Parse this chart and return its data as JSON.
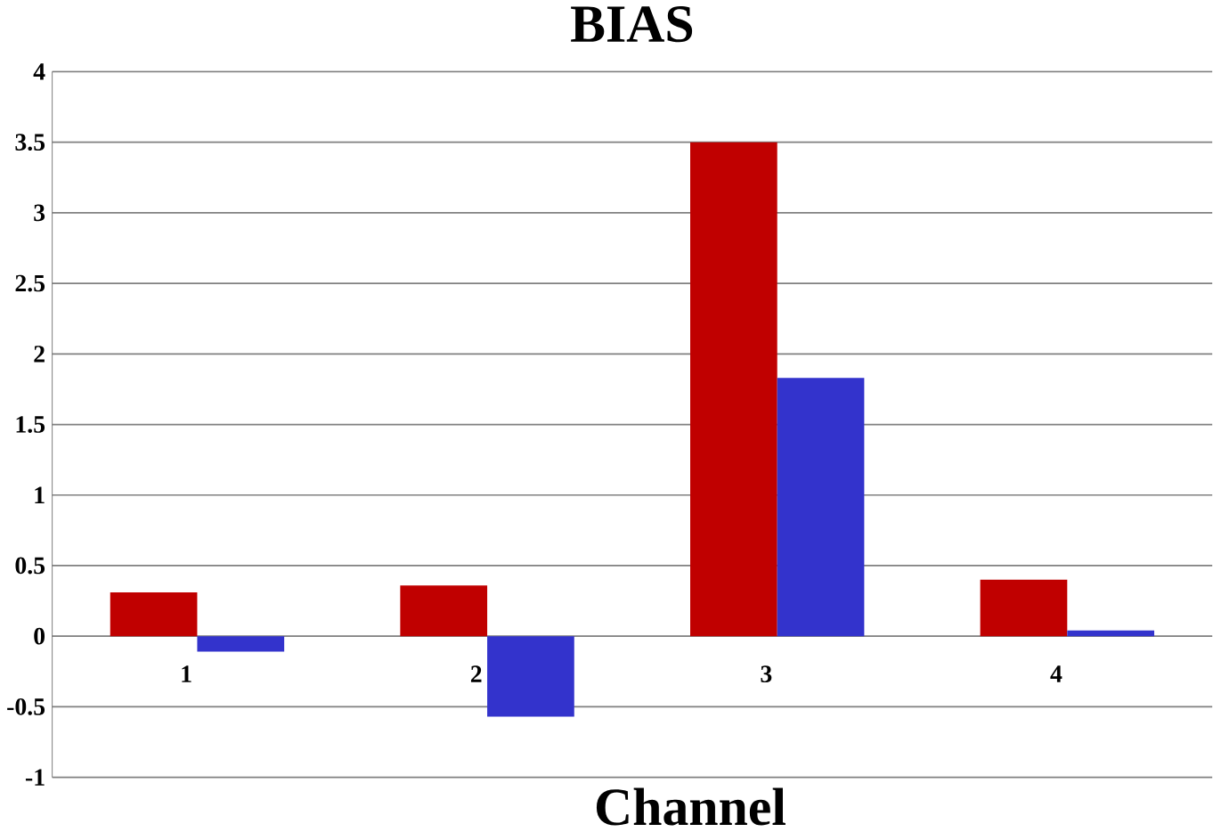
{
  "chart_data": {
    "type": "bar",
    "title": "BIAS",
    "xlabel": "Channel",
    "categories": [
      "1",
      "2",
      "3",
      "4"
    ],
    "series": [
      {
        "color": "#c00000",
        "values": [
          0.31,
          0.36,
          3.5,
          0.4
        ]
      },
      {
        "color": "#3333cc",
        "values": [
          -0.11,
          -0.57,
          1.83,
          0.04
        ]
      }
    ],
    "ylim": [
      -1,
      4
    ],
    "yticks": [
      -1,
      -0.5,
      0,
      0.5,
      1,
      1.5,
      2,
      2.5,
      3,
      3.5,
      4
    ],
    "grid": "y"
  }
}
